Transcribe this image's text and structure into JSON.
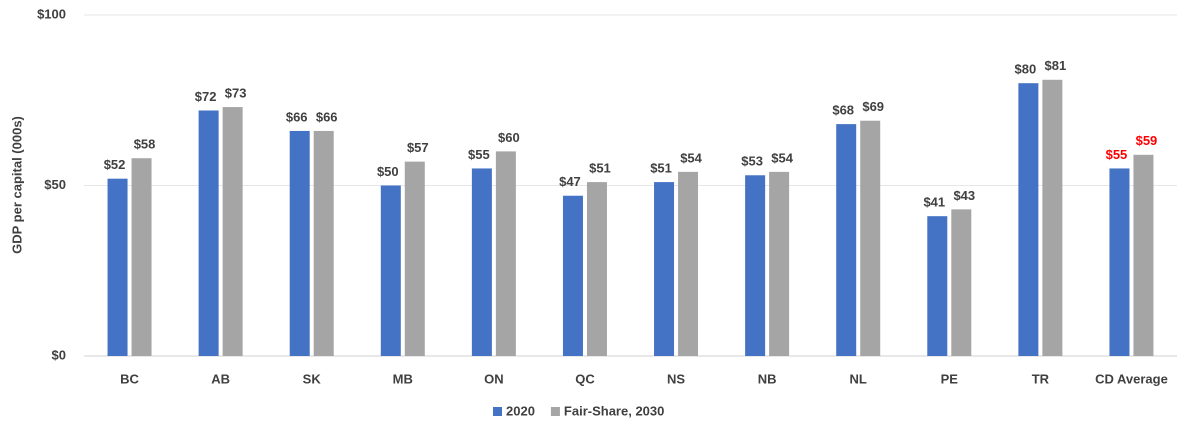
{
  "chart_data": {
    "type": "bar",
    "y_label": "GDP per capital (000s)",
    "categories": [
      "BC",
      "AB",
      "SK",
      "MB",
      "ON",
      "QC",
      "NS",
      "NB",
      "NL",
      "PE",
      "TR",
      "CD Average"
    ],
    "series": [
      {
        "name": "2020",
        "color": "#4472c4",
        "values": [
          52,
          72,
          66,
          50,
          55,
          47,
          51,
          53,
          68,
          41,
          80,
          55
        ],
        "value_labels": [
          "$52",
          "$72",
          "$66",
          "$50",
          "$55",
          "$47",
          "$51",
          "$53",
          "$68",
          "$41",
          "$80",
          "$55"
        ],
        "value_label_colors": [
          "#404040",
          "#404040",
          "#404040",
          "#404040",
          "#404040",
          "#404040",
          "#404040",
          "#404040",
          "#404040",
          "#404040",
          "#404040",
          "#ff0000"
        ]
      },
      {
        "name": "Fair-Share, 2030",
        "color": "#a5a5a5",
        "values": [
          58,
          73,
          66,
          57,
          60,
          51,
          54,
          54,
          69,
          43,
          81,
          59
        ],
        "value_labels": [
          "$58",
          "$73",
          "$66",
          "$57",
          "$60",
          "$51",
          "$54",
          "$54",
          "$69",
          "$43",
          "$81",
          "$59"
        ],
        "value_label_colors": [
          "#404040",
          "#404040",
          "#404040",
          "#404040",
          "#404040",
          "#404040",
          "#404040",
          "#404040",
          "#404040",
          "#404040",
          "#404040",
          "#ff0000"
        ]
      }
    ],
    "ylim": [
      0,
      100
    ],
    "yticks": [
      {
        "value": 0,
        "label": "$0"
      },
      {
        "value": 50,
        "label": "$50"
      },
      {
        "value": 100,
        "label": "$100"
      }
    ],
    "grid": true,
    "legend": "bottom"
  }
}
